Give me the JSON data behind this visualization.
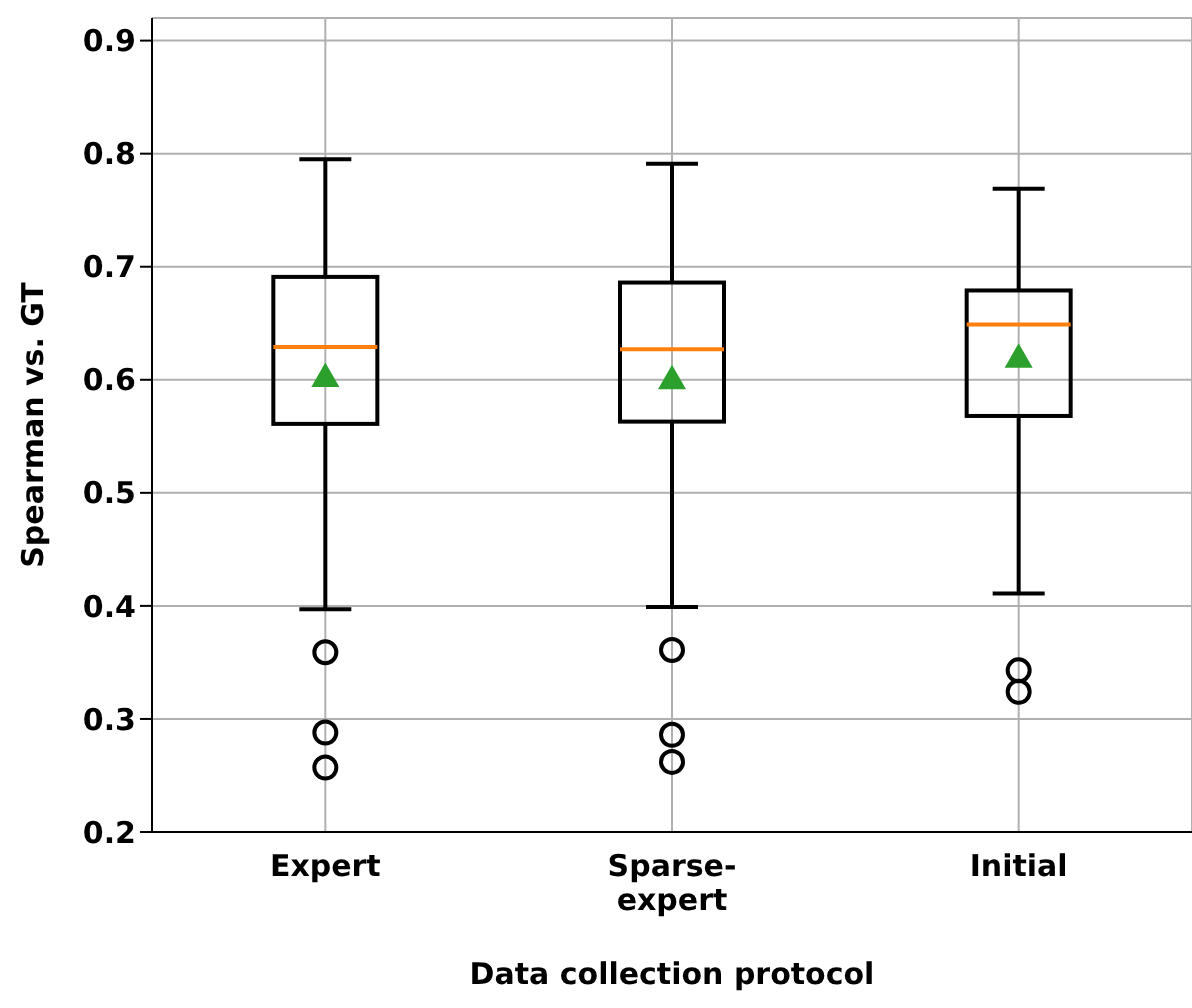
{
  "chart_data": {
    "type": "box",
    "xlabel": "Data collection protocol",
    "ylabel": "Spearman vs. GT",
    "categories": [
      "Expert",
      "Sparse-expert",
      "Initial"
    ],
    "boxes": [
      {
        "low": 0.397,
        "q1": 0.561,
        "median": 0.629,
        "q3": 0.691,
        "high": 0.795,
        "mean": 0.603,
        "outliers": [
          0.359,
          0.288,
          0.257
        ]
      },
      {
        "low": 0.399,
        "q1": 0.563,
        "median": 0.627,
        "q3": 0.686,
        "high": 0.791,
        "mean": 0.601,
        "outliers": [
          0.361,
          0.286,
          0.262
        ]
      },
      {
        "low": 0.411,
        "q1": 0.568,
        "median": 0.649,
        "q3": 0.679,
        "high": 0.769,
        "mean": 0.62,
        "outliers": [
          0.343,
          0.324
        ]
      }
    ],
    "ylim": [
      0.2,
      0.92
    ],
    "yticks": [
      0.2,
      0.3,
      0.4,
      0.5,
      0.6,
      0.7,
      0.8,
      0.9
    ],
    "grid": true
  }
}
